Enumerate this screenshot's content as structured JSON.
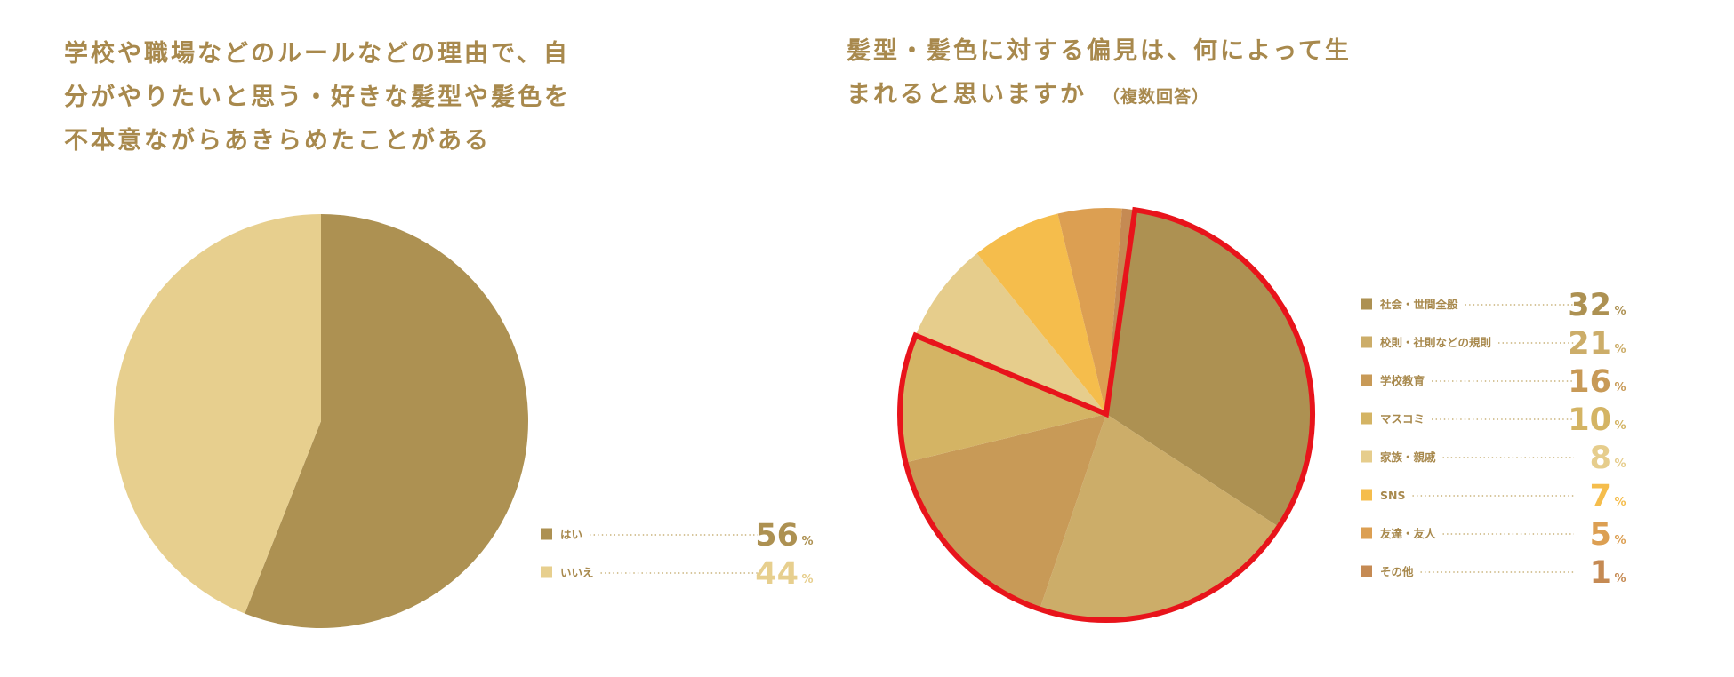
{
  "chart_data": [
    {
      "type": "pie",
      "title_lines": [
        "学校や職場などのルールなどの理由で、自",
        "分がやりたいと思う・好きな髪型や髪色を",
        "不本意ながらあきらめたことがある"
      ],
      "series": [
        {
          "label": "はい",
          "value": 56,
          "color": "#ad9152"
        },
        {
          "label": "いいえ",
          "value": 44,
          "color": "#e7cf8e"
        }
      ],
      "unit": "%",
      "start_angle_deg": 0,
      "legend_position": "bottom-right"
    },
    {
      "type": "pie",
      "title_lines": [
        "髪型・髪色に対する偏見は、何によって生",
        "まれると思いますか"
      ],
      "title_note": "（複数回答）",
      "series": [
        {
          "label": "社会・世間全般",
          "value": 32,
          "color": "#ad9152"
        },
        {
          "label": "校則・社則などの規則",
          "value": 21,
          "color": "#ccad69"
        },
        {
          "label": "学校教育",
          "value": 16,
          "color": "#c89a57"
        },
        {
          "label": "マスコミ",
          "value": 10,
          "color": "#d4b464"
        },
        {
          "label": "家族・親戚",
          "value": 8,
          "color": "#e6cd8c"
        },
        {
          "label": "SNS",
          "value": 7,
          "color": "#f5bd4c"
        },
        {
          "label": "友達・友人",
          "value": 5,
          "color": "#dc9f52"
        },
        {
          "label": "その他",
          "value": 1,
          "color": "#c58a53"
        }
      ],
      "unit": "%",
      "start_angle_deg": 8,
      "highlight": {
        "labels": [
          "社会・世間全般",
          "校則・社則などの規則",
          "学校教育",
          "マスコミ"
        ],
        "color": "#e8141b"
      },
      "legend_position": "right"
    }
  ]
}
